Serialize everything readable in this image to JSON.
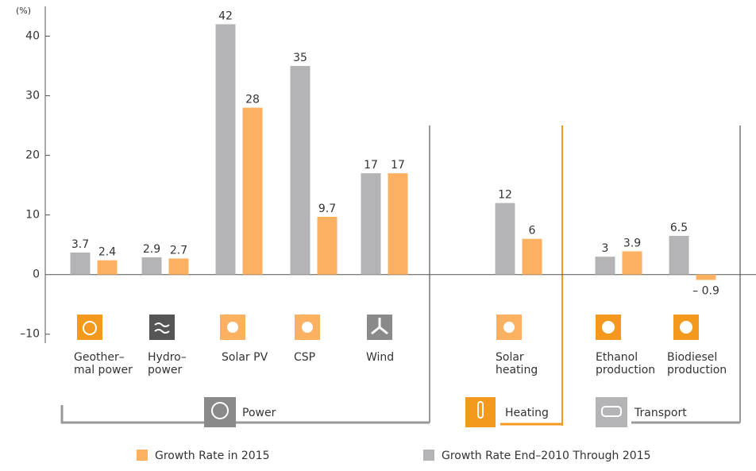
{
  "chart_data": {
    "type": "bar",
    "y_label": "(%)",
    "categories": [
      "Geother–\nmal power",
      "Hydro–\npower",
      "Solar PV",
      "CSP",
      "Wind",
      "Solar\nheating",
      "Ethanol\nproduction",
      "Biodiesel\nproduction"
    ],
    "series": [
      {
        "name": "Growth Rate End–2010 Through 2015",
        "color": "#b4b4b6",
        "values": [
          3.7,
          2.9,
          42,
          35,
          17,
          12,
          3,
          6.5
        ]
      },
      {
        "name": "Growth Rate in 2015",
        "color": "#fbb161",
        "values": [
          2.4,
          2.7,
          28,
          9.7,
          17,
          6,
          3.9,
          -0.9
        ],
        "value_labels": [
          "2.4",
          "2.7",
          "28",
          "9.7",
          "17",
          "6",
          "3.9",
          "– 0.9"
        ]
      }
    ],
    "groups": [
      "Power",
      "Heating",
      "Transport"
    ],
    "ylim": [
      -11.5,
      45
    ],
    "yticks": [
      {
        "value": -10,
        "label": "–10"
      },
      0,
      10,
      20,
      30,
      40
    ]
  }
}
